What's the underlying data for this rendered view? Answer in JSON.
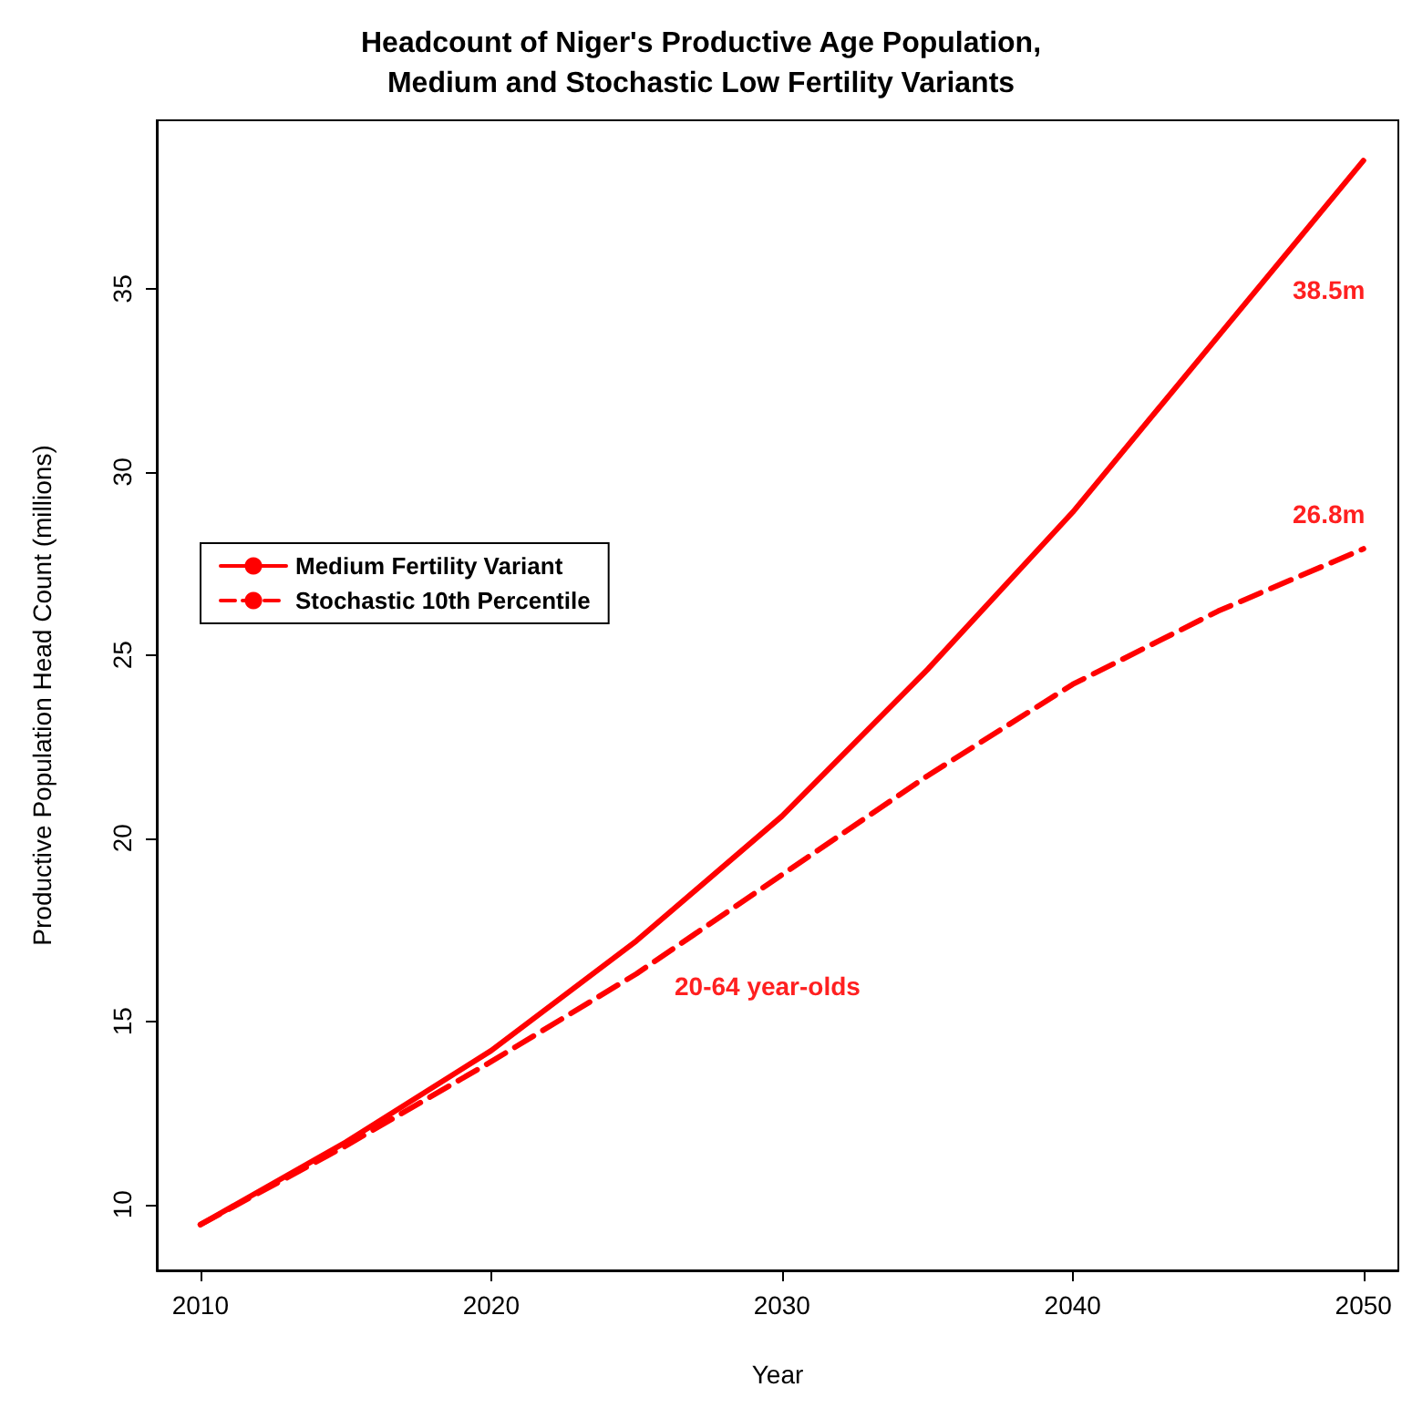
{
  "chart_data": {
    "type": "line",
    "title": "Headcount of Niger's Productive Age Population,\nMedium and Stochastic Low Fertility Variants",
    "xlabel": "Year",
    "ylabel": "Productive Population Head Count (millions)",
    "x": [
      2010,
      2015,
      2020,
      2025,
      2030,
      2035,
      2040,
      2045,
      2050
    ],
    "series": [
      {
        "name": "Medium Fertility Variant",
        "color": "#ff0000",
        "line_style": "solid",
        "values": [
          9.45,
          11.7,
          14.2,
          17.2,
          20.6,
          24.6,
          28.9,
          33.7,
          38.5
        ]
      },
      {
        "name": "Stochastic 10th Percentile",
        "color": "#ff0000",
        "line_style": "dashed",
        "values": [
          9.45,
          11.6,
          13.9,
          16.3,
          19.0,
          21.7,
          24.2,
          26.2,
          27.9
        ]
      }
    ],
    "xlim": [
      2008.5,
      2051.2
    ],
    "xticks": [
      2010,
      2020,
      2030,
      2040,
      2050
    ],
    "ylim": [
      8.2,
      39.6
    ],
    "yticks": [
      10,
      15,
      20,
      25,
      30,
      35
    ],
    "annotations": [
      "38.5m",
      "26.8m",
      "20-64 year-olds"
    ],
    "grid": false,
    "legend": "top left",
    "marker": "none"
  }
}
